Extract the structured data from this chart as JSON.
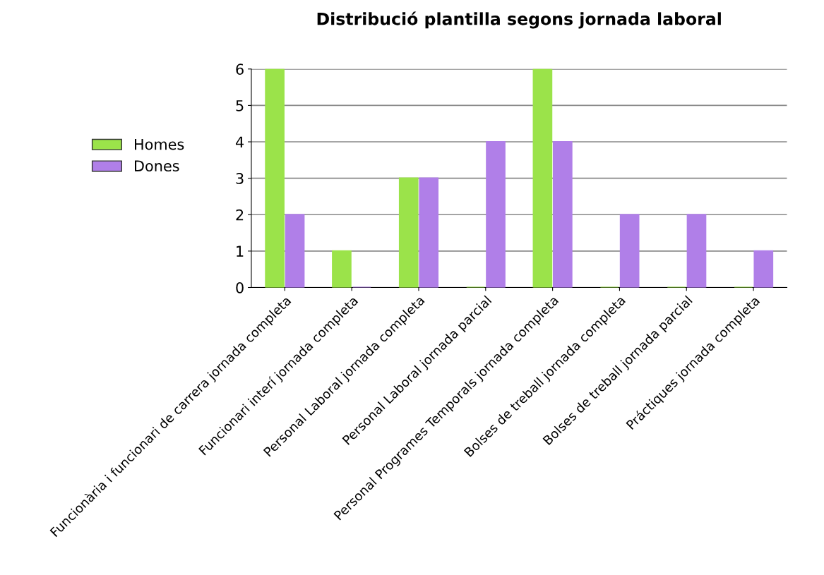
{
  "chart_data": {
    "type": "bar",
    "title": "Distribució plantilla segons jornada laboral",
    "categories": [
      "Funcionària i funcionari de carrera jornada completa",
      "Funcionari interí jornada completa",
      "Personal Laboral jornada completa",
      "Personal Laboral jornada parcial",
      "Personal Programes Temporals jornada completa",
      "Bolses de treball jornada completa",
      "Bolses de treball jornada parcial",
      "Práctiques jornada completa"
    ],
    "series": [
      {
        "name": "Homes",
        "color": "#9be34a",
        "values": [
          6,
          1,
          3,
          0,
          6,
          0,
          0,
          0
        ]
      },
      {
        "name": "Dones",
        "color": "#b07fe8",
        "values": [
          2,
          0,
          3,
          4,
          4,
          2,
          2,
          1
        ]
      }
    ],
    "ylim": [
      0,
      6
    ],
    "yticks": [
      0,
      1,
      2,
      3,
      4,
      5,
      6
    ],
    "grid": "y",
    "legend": "left"
  }
}
